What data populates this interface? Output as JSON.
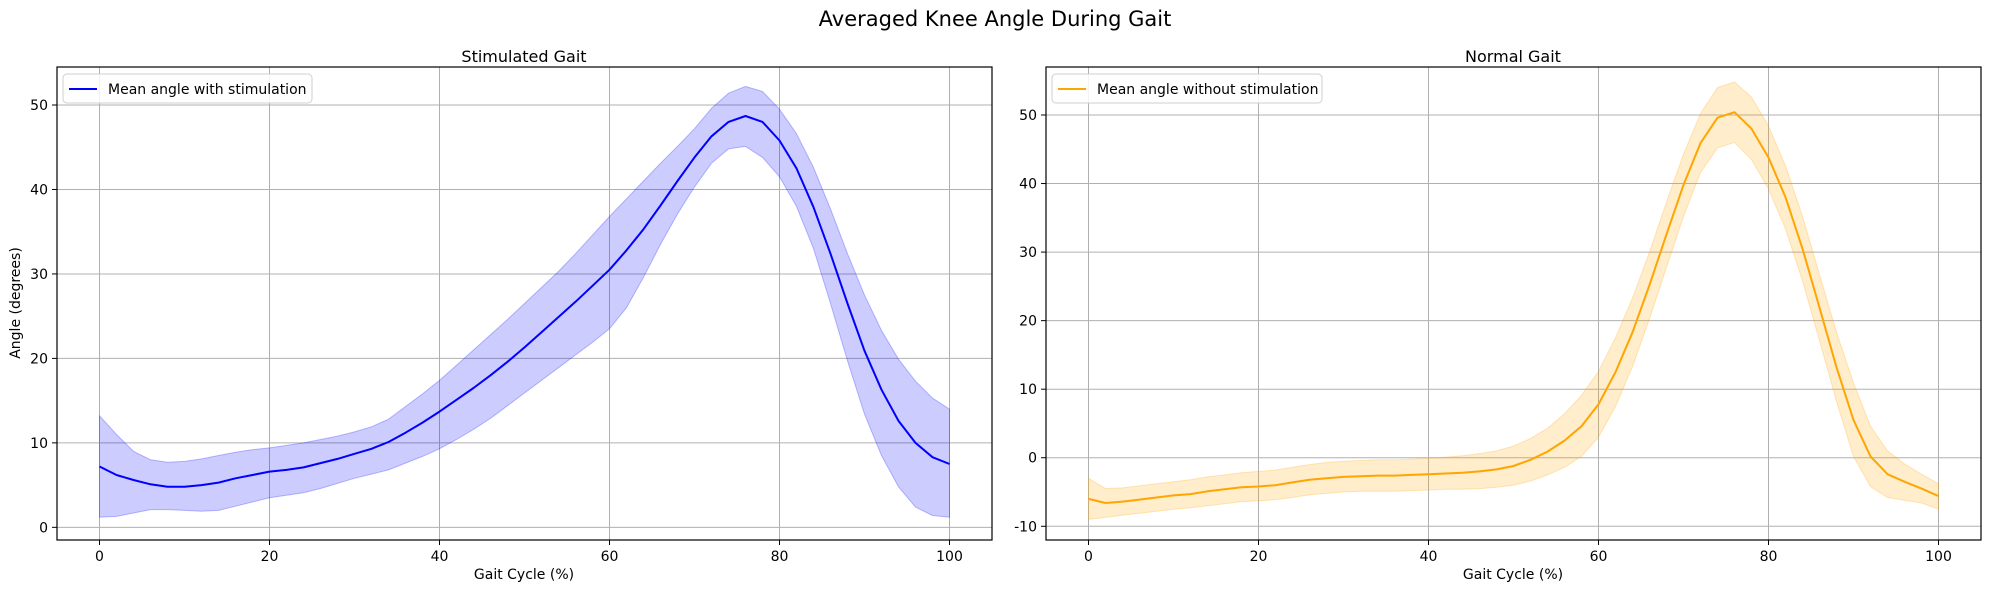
{
  "figure": {
    "title": "Averaged Knee Angle During Gait"
  },
  "chart_data": [
    {
      "type": "line",
      "title": "Stimulated Gait",
      "xlabel": "Gait Cycle (%)",
      "ylabel": "Angle (degrees)",
      "xlim": [
        -5,
        105
      ],
      "ylim": [
        -1.5,
        54.5
      ],
      "xticks": [
        0,
        20,
        40,
        60,
        80,
        100
      ],
      "yticks": [
        0,
        10,
        20,
        30,
        40,
        50
      ],
      "grid": true,
      "legend_position": "upper-left",
      "series": [
        {
          "name": "Mean angle with stimulation",
          "color": "#0000ff",
          "band_color": "#0000ff",
          "x": [
            0,
            2,
            4,
            6,
            8,
            10,
            12,
            14,
            16,
            18,
            20,
            22,
            24,
            26,
            28,
            30,
            32,
            34,
            36,
            38,
            40,
            42,
            44,
            46,
            48,
            50,
            52,
            54,
            56,
            58,
            60,
            62,
            64,
            66,
            68,
            70,
            72,
            74,
            76,
            78,
            80,
            82,
            84,
            86,
            88,
            90,
            92,
            94,
            96,
            98,
            100
          ],
          "mean": [
            7.2,
            6.2,
            5.6,
            5.1,
            4.8,
            4.8,
            5.0,
            5.3,
            5.8,
            6.2,
            6.6,
            6.8,
            7.1,
            7.6,
            8.1,
            8.7,
            9.3,
            10.1,
            11.2,
            12.4,
            13.7,
            15.1,
            16.5,
            18.0,
            19.6,
            21.3,
            23.1,
            24.9,
            26.7,
            28.6,
            30.5,
            32.8,
            35.3,
            38.1,
            41.0,
            43.8,
            46.3,
            48.0,
            48.7,
            48.0,
            45.8,
            42.5,
            37.9,
            32.4,
            26.5,
            20.9,
            16.3,
            12.6,
            10.0,
            8.3,
            7.5
          ],
          "upper": [
            13.2,
            11.0,
            9.0,
            8.0,
            7.7,
            7.8,
            8.1,
            8.5,
            8.9,
            9.2,
            9.4,
            9.7,
            10.0,
            10.4,
            10.8,
            11.3,
            11.9,
            12.8,
            14.3,
            15.8,
            17.4,
            19.2,
            21.0,
            22.8,
            24.6,
            26.5,
            28.4,
            30.3,
            32.4,
            34.6,
            36.8,
            38.9,
            41.0,
            43.1,
            45.1,
            47.2,
            49.6,
            51.4,
            52.2,
            51.6,
            49.5,
            46.6,
            42.6,
            37.7,
            32.4,
            27.5,
            23.3,
            19.9,
            17.3,
            15.3,
            14.0
          ],
          "lower": [
            1.2,
            1.3,
            1.7,
            2.1,
            2.1,
            2.0,
            1.9,
            2.0,
            2.5,
            3.0,
            3.5,
            3.8,
            4.1,
            4.6,
            5.2,
            5.8,
            6.3,
            6.8,
            7.6,
            8.4,
            9.3,
            10.4,
            11.6,
            12.9,
            14.4,
            15.9,
            17.4,
            18.9,
            20.4,
            21.9,
            23.5,
            26.0,
            29.6,
            33.5,
            37.1,
            40.3,
            43.1,
            44.8,
            45.1,
            43.8,
            41.5,
            38.0,
            33.0,
            26.5,
            19.7,
            13.4,
            8.5,
            4.8,
            2.4,
            1.4,
            1.2
          ]
        }
      ]
    },
    {
      "type": "line",
      "title": "Normal Gait",
      "xlabel": "Gait Cycle (%)",
      "ylabel": "",
      "xlim": [
        -5,
        105
      ],
      "ylim": [
        -12,
        57
      ],
      "xticks": [
        0,
        20,
        40,
        60,
        80,
        100
      ],
      "yticks": [
        -10,
        0,
        10,
        20,
        30,
        40,
        50
      ],
      "grid": true,
      "legend_position": "upper-left",
      "series": [
        {
          "name": "Mean angle without stimulation",
          "color": "#ffa500",
          "band_color": "#ffa500",
          "x": [
            0,
            2,
            4,
            6,
            8,
            10,
            12,
            14,
            16,
            18,
            20,
            22,
            24,
            26,
            28,
            30,
            32,
            34,
            36,
            38,
            40,
            42,
            44,
            46,
            48,
            50,
            52,
            54,
            56,
            58,
            60,
            62,
            64,
            66,
            68,
            70,
            72,
            74,
            76,
            78,
            80,
            82,
            84,
            86,
            88,
            90,
            92,
            94,
            96,
            98,
            100
          ],
          "mean": [
            -6.0,
            -6.6,
            -6.4,
            -6.1,
            -5.8,
            -5.5,
            -5.3,
            -4.9,
            -4.6,
            -4.3,
            -4.2,
            -4.0,
            -3.6,
            -3.2,
            -3.0,
            -2.8,
            -2.7,
            -2.6,
            -2.6,
            -2.5,
            -2.4,
            -2.3,
            -2.2,
            -2.0,
            -1.7,
            -1.2,
            -0.3,
            0.9,
            2.5,
            4.6,
            7.8,
            12.5,
            18.3,
            25.2,
            32.6,
            39.8,
            45.9,
            49.6,
            50.4,
            48.0,
            43.8,
            38.0,
            30.5,
            21.9,
            13.2,
            5.5,
            0.2,
            -2.4,
            -3.5,
            -4.5,
            -5.6
          ],
          "upper": [
            -3.0,
            -4.5,
            -4.4,
            -4.1,
            -3.8,
            -3.5,
            -3.2,
            -2.8,
            -2.5,
            -2.2,
            -2.0,
            -1.8,
            -1.4,
            -1.0,
            -0.7,
            -0.5,
            -0.4,
            -0.3,
            -0.3,
            -0.2,
            -0.1,
            0.1,
            0.3,
            0.6,
            1.0,
            1.7,
            2.8,
            4.3,
            6.4,
            9.1,
            12.6,
            17.5,
            23.3,
            30.0,
            37.3,
            44.3,
            50.2,
            54.0,
            54.8,
            52.6,
            48.4,
            42.6,
            35.2,
            26.7,
            18.3,
            10.9,
            4.6,
            1.0,
            -0.9,
            -2.4,
            -3.8
          ],
          "lower": [
            -9.0,
            -8.7,
            -8.4,
            -8.1,
            -7.8,
            -7.5,
            -7.3,
            -7.0,
            -6.7,
            -6.4,
            -6.3,
            -6.1,
            -5.8,
            -5.4,
            -5.2,
            -5.0,
            -4.9,
            -4.9,
            -4.9,
            -4.8,
            -4.7,
            -4.6,
            -4.6,
            -4.5,
            -4.3,
            -4.0,
            -3.4,
            -2.5,
            -1.4,
            0.2,
            3.0,
            7.5,
            13.3,
            20.3,
            27.8,
            35.2,
            41.6,
            45.2,
            46.0,
            43.5,
            39.2,
            33.4,
            25.8,
            17.1,
            8.2,
            0.2,
            -4.2,
            -5.8,
            -6.2,
            -6.6,
            -7.5
          ]
        }
      ]
    }
  ]
}
